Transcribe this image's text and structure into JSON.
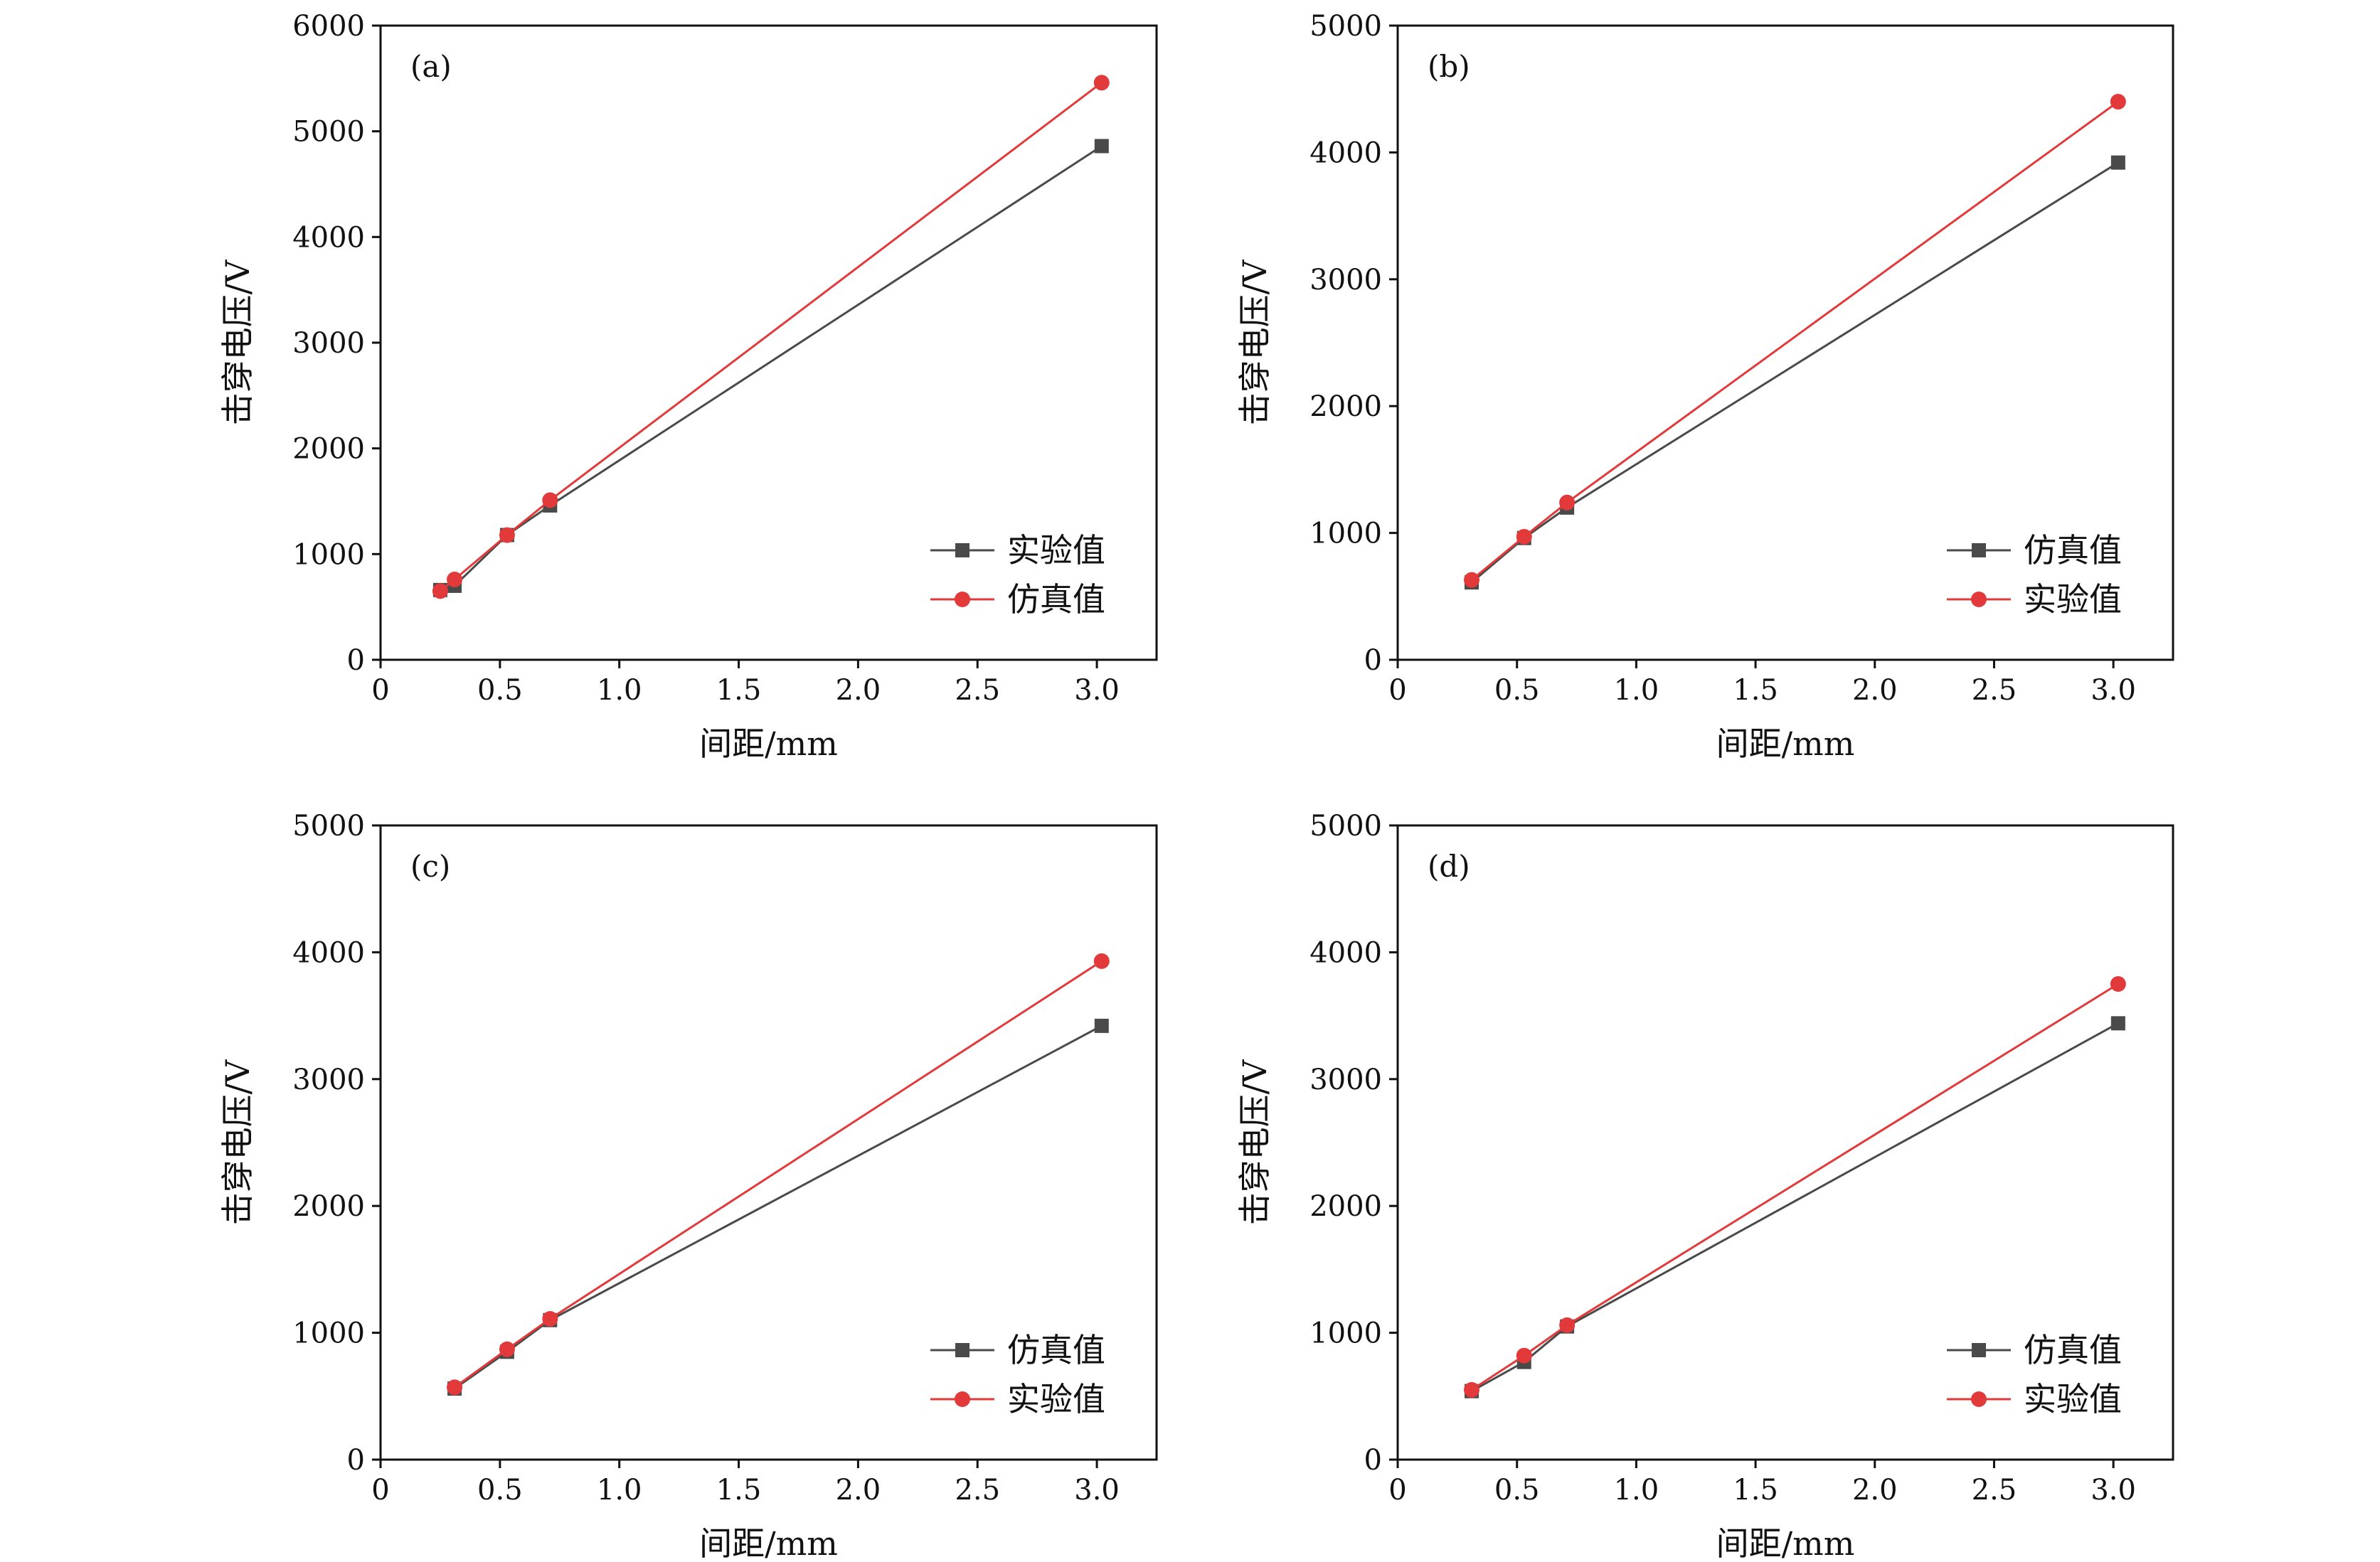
{
  "colors": {
    "black_series": "#4a4a4a",
    "red_series": "#e23a3a",
    "axis": "#111111"
  },
  "chart_data": [
    {
      "type": "line",
      "panel_label": "(a)",
      "xlabel": "间距/mm",
      "ylabel": "击穿电压/V",
      "xlim": [
        0,
        3.25
      ],
      "ylim": [
        0,
        6000
      ],
      "xticks": [
        0,
        0.5,
        1.0,
        1.5,
        2.0,
        2.5,
        3.0
      ],
      "xtick_labels": [
        "0",
        "0.5",
        "1.0",
        "1.5",
        "2.0",
        "2.5",
        "3.0"
      ],
      "yticks": [
        0,
        1000,
        2000,
        3000,
        4000,
        5000,
        6000
      ],
      "ytick_labels": [
        "0",
        "1000",
        "2000",
        "3000",
        "4000",
        "5000",
        "6000"
      ],
      "legend_position": "bottom-right",
      "series": [
        {
          "name": "实验值",
          "marker": "square",
          "color": "#4a4a4a",
          "x": [
            0.25,
            0.31,
            0.53,
            0.71,
            3.02
          ],
          "y": [
            660,
            700,
            1180,
            1460,
            4860
          ]
        },
        {
          "name": "仿真值",
          "marker": "circle",
          "color": "#e23a3a",
          "x": [
            0.25,
            0.31,
            0.53,
            0.71,
            3.02
          ],
          "y": [
            650,
            760,
            1180,
            1510,
            5460
          ]
        }
      ]
    },
    {
      "type": "line",
      "panel_label": "(b)",
      "xlabel": "间距/mm",
      "ylabel": "击穿电压/V",
      "xlim": [
        0,
        3.25
      ],
      "ylim": [
        0,
        5000
      ],
      "xticks": [
        0,
        0.5,
        1.0,
        1.5,
        2.0,
        2.5,
        3.0
      ],
      "xtick_labels": [
        "0",
        "0.5",
        "1.0",
        "1.5",
        "2.0",
        "2.5",
        "3.0"
      ],
      "yticks": [
        0,
        1000,
        2000,
        3000,
        4000,
        5000
      ],
      "ytick_labels": [
        "0",
        "1000",
        "2000",
        "3000",
        "4000",
        "5000"
      ],
      "legend_position": "bottom-right",
      "series": [
        {
          "name": "仿真值",
          "marker": "square",
          "color": "#4a4a4a",
          "x": [
            0.31,
            0.53,
            0.71,
            3.02
          ],
          "y": [
            610,
            960,
            1200,
            3920
          ]
        },
        {
          "name": "实验值",
          "marker": "circle",
          "color": "#e23a3a",
          "x": [
            0.31,
            0.53,
            0.71,
            3.02
          ],
          "y": [
            630,
            970,
            1240,
            4400
          ]
        }
      ]
    },
    {
      "type": "line",
      "panel_label": "(c)",
      "xlabel": "间距/mm",
      "ylabel": "击穿电压/V",
      "xlim": [
        0,
        3.25
      ],
      "ylim": [
        0,
        5000
      ],
      "xticks": [
        0,
        0.5,
        1.0,
        1.5,
        2.0,
        2.5,
        3.0
      ],
      "xtick_labels": [
        "0",
        "0.5",
        "1.0",
        "1.5",
        "2.0",
        "2.5",
        "3.0"
      ],
      "yticks": [
        0,
        1000,
        2000,
        3000,
        4000,
        5000
      ],
      "ytick_labels": [
        "0",
        "1000",
        "2000",
        "3000",
        "4000",
        "5000"
      ],
      "legend_position": "bottom-right",
      "series": [
        {
          "name": "仿真值",
          "marker": "square",
          "color": "#4a4a4a",
          "x": [
            0.31,
            0.53,
            0.71,
            3.02
          ],
          "y": [
            560,
            850,
            1100,
            3420
          ]
        },
        {
          "name": "实验值",
          "marker": "circle",
          "color": "#e23a3a",
          "x": [
            0.31,
            0.53,
            0.71,
            3.02
          ],
          "y": [
            570,
            870,
            1110,
            3930
          ]
        }
      ]
    },
    {
      "type": "line",
      "panel_label": "(d)",
      "xlabel": "间距/mm",
      "ylabel": "击穿电压/V",
      "xlim": [
        0,
        3.25
      ],
      "ylim": [
        0,
        5000
      ],
      "xticks": [
        0,
        0.5,
        1.0,
        1.5,
        2.0,
        2.5,
        3.0
      ],
      "xtick_labels": [
        "0",
        "0.5",
        "1.0",
        "1.5",
        "2.0",
        "2.5",
        "3.0"
      ],
      "yticks": [
        0,
        1000,
        2000,
        3000,
        4000,
        5000
      ],
      "ytick_labels": [
        "0",
        "1000",
        "2000",
        "3000",
        "4000",
        "5000"
      ],
      "legend_position": "bottom-right",
      "series": [
        {
          "name": "仿真值",
          "marker": "square",
          "color": "#4a4a4a",
          "x": [
            0.31,
            0.53,
            0.71,
            3.02
          ],
          "y": [
            540,
            770,
            1050,
            3440
          ]
        },
        {
          "name": "实验值",
          "marker": "circle",
          "color": "#e23a3a",
          "x": [
            0.31,
            0.53,
            0.71,
            3.02
          ],
          "y": [
            550,
            820,
            1060,
            3750
          ]
        }
      ]
    }
  ]
}
